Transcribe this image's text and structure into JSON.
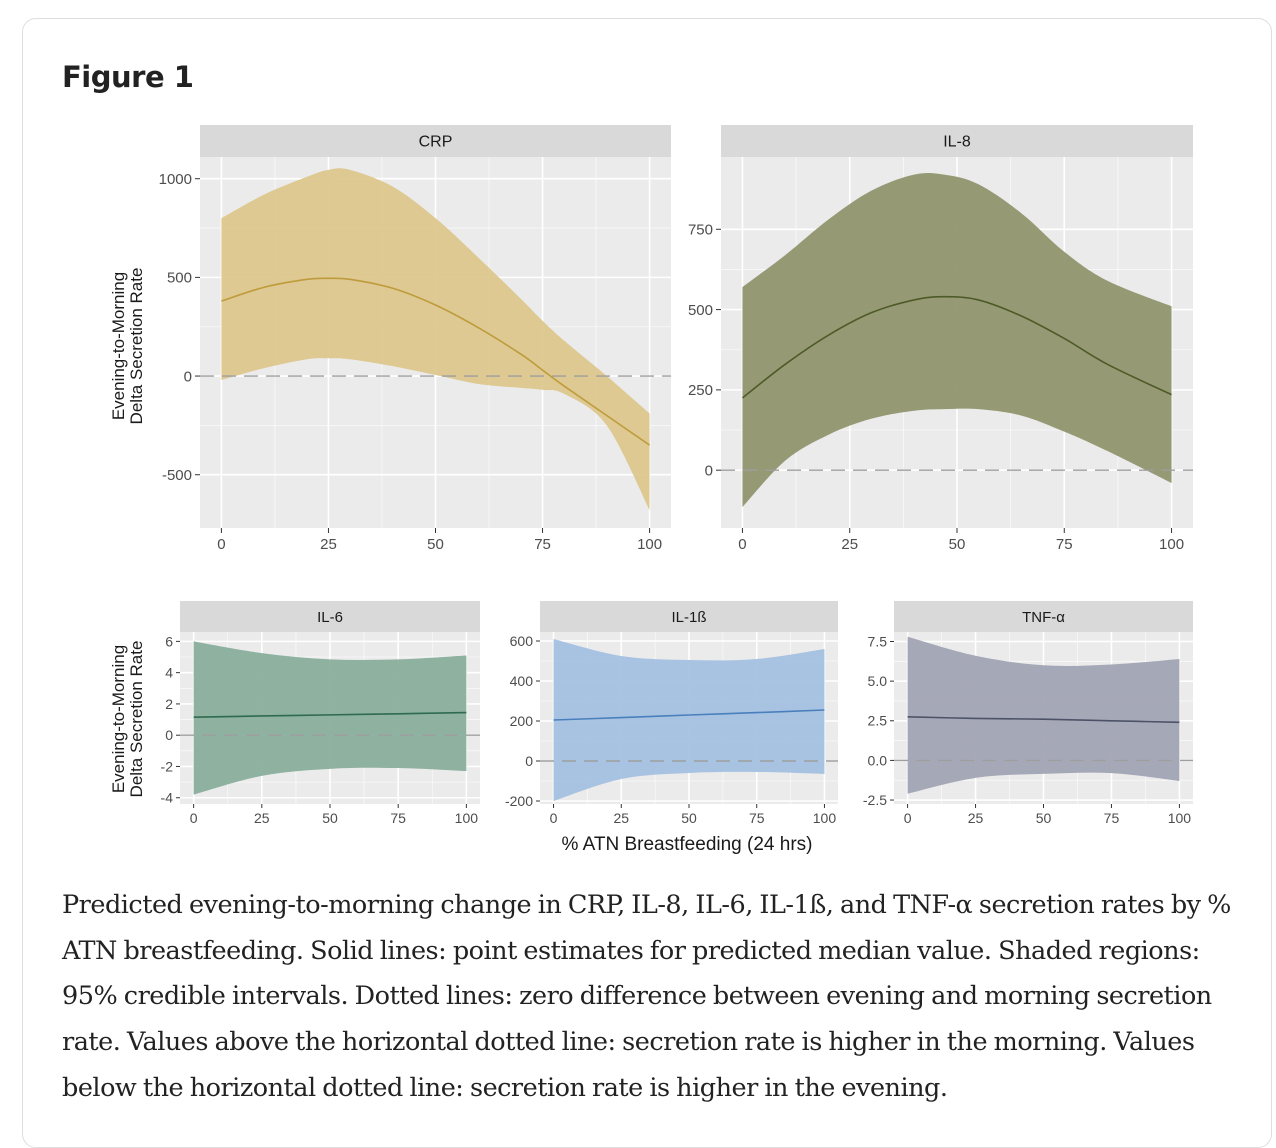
{
  "figure": {
    "title": "Figure 1",
    "caption": "Predicted evening-to-morning change in CRP, IL-8, IL-6, IL-1ß, and TNF-α secretion rates by % ATN breastfeeding. Solid lines: point estimates for predicted median value. Shaded regions: 95% credible intervals. Dotted lines: zero difference between evening and morning secretion rate. Values above the horizontal dotted line: secretion rate is higher in the morning. Values below the horizontal dotted line: secretion rate is higher in the evening."
  },
  "axis_titles": {
    "y_line1": "Evening-to-Morning",
    "y_line2": "Delta Secretion Rate",
    "x": "% ATN Breastfeeding (24 hrs)"
  },
  "colors": {
    "panel_bg": "#ebebeb",
    "strip_bg": "#d9d9d9",
    "grid": "#ffffff",
    "zero_line": "#9e9e9e",
    "tick_text": "#4d4d4d",
    "strip_text": "#1a1a1a"
  },
  "chart_data": [
    {
      "type": "area",
      "title": "CRP",
      "xlabel": "% ATN Breastfeeding (24 hrs)",
      "ylabel": "Evening-to-Morning Delta Secretion Rate",
      "xlim": [
        -5,
        105
      ],
      "ylim": [
        -770,
        1110
      ],
      "xticks": [
        0,
        25,
        50,
        75,
        100
      ],
      "xtick_labels": [
        "0",
        "25",
        "50",
        "75",
        "100"
      ],
      "yticks": [
        -500,
        0,
        500,
        1000
      ],
      "ytick_labels": [
        "-500",
        "0",
        "500",
        "1000"
      ],
      "grid": true,
      "zero_line": 0,
      "fill": "#dcc68a",
      "line": "#bf9b3c",
      "x": [
        0,
        10,
        20,
        25,
        30,
        40,
        50,
        60,
        70,
        75,
        80,
        90,
        100
      ],
      "median": [
        380,
        450,
        490,
        495,
        490,
        445,
        360,
        245,
        110,
        30,
        -50,
        -200,
        -350
      ],
      "lower": [
        -20,
        40,
        85,
        90,
        85,
        50,
        5,
        -40,
        -60,
        -70,
        -90,
        -250,
        -680
      ],
      "upper": [
        800,
        920,
        1010,
        1045,
        1045,
        960,
        800,
        600,
        390,
        280,
        180,
        0,
        -190
      ]
    },
    {
      "type": "area",
      "title": "IL-8",
      "xlabel": "% ATN Breastfeeding (24 hrs)",
      "ylabel": "",
      "xlim": [
        -5,
        105
      ],
      "ylim": [
        -180,
        975
      ],
      "xticks": [
        0,
        25,
        50,
        75,
        100
      ],
      "xtick_labels": [
        "0",
        "25",
        "50",
        "75",
        "100"
      ],
      "yticks": [
        0,
        250,
        500,
        750
      ],
      "ytick_labels": [
        "0",
        "250",
        "500",
        "750"
      ],
      "grid": true,
      "zero_line": 0,
      "fill": "#8e936b",
      "line": "#4e5a28",
      "x": [
        0,
        10,
        20,
        30,
        40,
        47,
        55,
        65,
        75,
        85,
        100
      ],
      "median": [
        225,
        330,
        420,
        490,
        530,
        540,
        530,
        480,
        410,
        330,
        235
      ],
      "lower": [
        -115,
        30,
        110,
        160,
        185,
        190,
        190,
        170,
        120,
        60,
        -40
      ],
      "upper": [
        570,
        670,
        780,
        870,
        920,
        920,
        890,
        800,
        680,
        590,
        510
      ]
    },
    {
      "type": "area",
      "title": "IL-6",
      "xlabel": "% ATN Breastfeeding (24 hrs)",
      "ylabel": "Evening-to-Morning Delta Secretion Rate",
      "xlim": [
        -5,
        105
      ],
      "ylim": [
        -4.4,
        6.6
      ],
      "xticks": [
        0,
        25,
        50,
        75,
        100
      ],
      "xtick_labels": [
        "0",
        "25",
        "50",
        "75",
        "100"
      ],
      "yticks": [
        -4,
        -2,
        0,
        2,
        4,
        6
      ],
      "ytick_labels": [
        "-4",
        "-2",
        "0",
        "2",
        "4",
        "6"
      ],
      "grid": true,
      "zero_line": 0,
      "fill": "#87ac9a",
      "line": "#2f6b4f",
      "x": [
        0,
        25,
        50,
        75,
        100
      ],
      "median": [
        1.15,
        1.23,
        1.3,
        1.37,
        1.45
      ],
      "lower": [
        -3.8,
        -2.6,
        -2.15,
        -2.1,
        -2.3
      ],
      "upper": [
        6.0,
        5.25,
        4.85,
        4.85,
        5.1
      ]
    },
    {
      "type": "area",
      "title": "IL-1ß",
      "xlabel": "% ATN Breastfeeding (24 hrs)",
      "ylabel": "",
      "xlim": [
        -5,
        105
      ],
      "ylim": [
        -215,
        645
      ],
      "xticks": [
        0,
        25,
        50,
        75,
        100
      ],
      "xtick_labels": [
        "0",
        "25",
        "50",
        "75",
        "100"
      ],
      "yticks": [
        -200,
        0,
        200,
        400,
        600
      ],
      "ytick_labels": [
        "-200",
        "0",
        "200",
        "400",
        "600"
      ],
      "grid": true,
      "zero_line": 0,
      "fill": "#a3bfe0",
      "line": "#4a7fbd",
      "x": [
        0,
        25,
        50,
        75,
        100
      ],
      "median": [
        205,
        217,
        230,
        242,
        255
      ],
      "lower": [
        -200,
        -90,
        -60,
        -55,
        -65
      ],
      "upper": [
        610,
        525,
        505,
        510,
        560
      ]
    },
    {
      "type": "area",
      "title": "TNF-α",
      "xlabel": "% ATN Breastfeeding (24 hrs)",
      "ylabel": "",
      "xlim": [
        -5,
        105
      ],
      "ylim": [
        -2.75,
        8.1
      ],
      "xticks": [
        0,
        25,
        50,
        75,
        100
      ],
      "xtick_labels": [
        "0",
        "25",
        "50",
        "75",
        "100"
      ],
      "yticks": [
        -2.5,
        0,
        2.5,
        5,
        7.5
      ],
      "ytick_labels": [
        "-2.5",
        "0.0",
        "2.5",
        "5.0",
        "7.5"
      ],
      "grid": true,
      "zero_line": 0,
      "fill": "#9fa2b3",
      "line": "#4d5366",
      "x": [
        0,
        25,
        50,
        75,
        100
      ],
      "median": [
        2.75,
        2.65,
        2.6,
        2.5,
        2.4
      ],
      "lower": [
        -2.1,
        -1.1,
        -0.85,
        -0.8,
        -1.3
      ],
      "upper": [
        7.8,
        6.6,
        6.0,
        6.05,
        6.4
      ]
    }
  ]
}
